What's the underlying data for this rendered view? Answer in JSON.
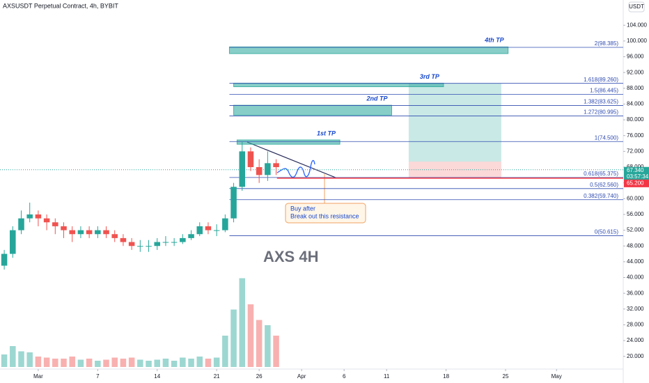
{
  "chart_data": {
    "type": "candlestick",
    "title": "AXSUSDT Perpetual Contract, 4h, BYBIT",
    "currency": "USDT",
    "watermark": "AXS 4H",
    "callout": [
      "Buy after",
      "Break out this resistance"
    ],
    "x": [
      -4,
      -3,
      -2,
      -1,
      0,
      1,
      2,
      3,
      4,
      5,
      6,
      7,
      8,
      9,
      10,
      11,
      12,
      13,
      14,
      15,
      16,
      17,
      18,
      19,
      20,
      21,
      22,
      23,
      24,
      25,
      26,
      27,
      28
    ],
    "open": [
      43,
      46,
      52,
      55,
      56,
      55,
      54,
      53,
      52,
      51,
      52,
      51,
      52,
      51,
      50,
      49,
      48,
      48,
      48,
      49,
      49,
      49,
      50,
      51,
      53,
      52,
      52,
      55,
      63,
      72,
      68,
      66,
      69
    ],
    "high": [
      47,
      53,
      57,
      59,
      57,
      56,
      55,
      54,
      53,
      53,
      53,
      53,
      53,
      52,
      51,
      50,
      49.5,
      49.5,
      50,
      50.5,
      50,
      51,
      52,
      54,
      54,
      53.5,
      56,
      64,
      74.5,
      73,
      70,
      72,
      70
    ],
    "low": [
      42,
      45,
      51,
      54,
      53,
      52,
      51,
      50,
      49,
      50,
      50,
      50,
      50,
      49,
      48,
      47,
      46.5,
      46.5,
      47,
      48,
      48,
      48.5,
      49.5,
      50.5,
      51,
      50.5,
      51.5,
      54,
      62,
      67,
      64,
      64.5,
      66
    ],
    "close": [
      46,
      52,
      55,
      56,
      55,
      54,
      53,
      52,
      51,
      52,
      51,
      52,
      51,
      50,
      49,
      48,
      48,
      48,
      49,
      49,
      49,
      50,
      51,
      53,
      52,
      52,
      55,
      63,
      72,
      68,
      66,
      69,
      68
    ],
    "up_color": "#26a69a",
    "down_color": "#ef5350",
    "volume": {
      "values": [
        12,
        20,
        15,
        14,
        10,
        9,
        8,
        8,
        10,
        7,
        8,
        6,
        7,
        9,
        8,
        9,
        7,
        6,
        7,
        8,
        6,
        9,
        8,
        10,
        8,
        9,
        30,
        55,
        85,
        60,
        45,
        40,
        30
      ],
      "ylim": [
        0,
        100
      ]
    },
    "xlim": [
      -4.5,
      68.85
    ],
    "xticks": [
      {
        "value": 0,
        "label": "Mar"
      },
      7,
      14,
      21,
      26,
      {
        "value": 31,
        "label": "Apr"
      },
      {
        "value": 36,
        "label": "6"
      },
      {
        "value": 41,
        "label": "11"
      },
      {
        "value": 48,
        "label": "18"
      },
      {
        "value": 55,
        "label": "25"
      },
      {
        "value": 61,
        "label": "May"
      }
    ],
    "ylim": [
      17.3,
      110.4
    ],
    "yticks": [
      {
        "value": 20,
        "label": "20.000"
      },
      {
        "value": 24,
        "label": "24.000"
      },
      {
        "value": 28,
        "label": "28.000"
      },
      {
        "value": 32,
        "label": "32.000"
      },
      {
        "value": 36,
        "label": "36.000"
      },
      {
        "value": 40,
        "label": "40.000"
      },
      {
        "value": 44,
        "label": "44.000"
      },
      {
        "value": 48,
        "label": "48.000"
      },
      {
        "value": 52,
        "label": "52.000"
      },
      {
        "value": 56,
        "label": "56.000"
      },
      {
        "value": 60,
        "label": "60.000"
      },
      {
        "value": 64,
        "label": "64.000"
      },
      {
        "value": 68,
        "label": "68.000"
      },
      {
        "value": 72,
        "label": "72.000"
      },
      {
        "value": 76,
        "label": "76.000"
      },
      {
        "value": 80,
        "label": "80.000"
      },
      {
        "value": 84,
        "label": "84.000"
      },
      {
        "value": 88,
        "label": "88.000"
      },
      {
        "value": 92,
        "label": "92.000"
      },
      {
        "value": 96,
        "label": "96.000"
      },
      {
        "value": 100,
        "label": "100.000"
      },
      {
        "value": 104,
        "label": "104.000"
      }
    ],
    "fib": {
      "x0": 22.5,
      "color": "#2f4bb0",
      "levels": [
        {
          "value": 98.385,
          "label": "2(98.385)"
        },
        {
          "value": 89.26,
          "label": "1.618(89.260)"
        },
        {
          "value": 86.445,
          "label": "1.5(86.445)"
        },
        {
          "value": 83.625,
          "label": "1.382(83.625)"
        },
        {
          "value": 80.995,
          "label": "1.272(80.995)"
        },
        {
          "value": 74.5,
          "label": "1(74.500)"
        },
        {
          "value": 65.375,
          "label": "0.618(65.375)"
        },
        {
          "value": 62.56,
          "label": "0.5(62.560)"
        },
        {
          "value": 59.74,
          "label": "0.382(59.740)"
        },
        {
          "value": 50.615,
          "label": "0(50.615)"
        }
      ]
    },
    "targets": [
      {
        "label": "1st TP",
        "top": 74.9,
        "bottom": 73.8,
        "x0": 23.4,
        "x1": 35.5
      },
      {
        "label": "2nd TP",
        "top": 83.7,
        "bottom": 81.2,
        "x0": 23,
        "x1": 41.6
      },
      {
        "label": "3rd TP",
        "top": 89.3,
        "bottom": 88.4,
        "x0": 23,
        "x1": 47.7
      },
      {
        "label": "4th TP",
        "top": 98.5,
        "bottom": 96.8,
        "x0": 22.5,
        "x1": 55.3
      }
    ],
    "position": {
      "x0": 43.6,
      "x1": 54.5,
      "target": 89.26,
      "entry": 69.4,
      "stop": 65.3
    },
    "last_price": {
      "value": 67.34,
      "label": "67.340"
    },
    "countdown": "03:57:34",
    "stop_line": {
      "value": 65.2,
      "label": "65.200",
      "x0": 28.1
    }
  }
}
